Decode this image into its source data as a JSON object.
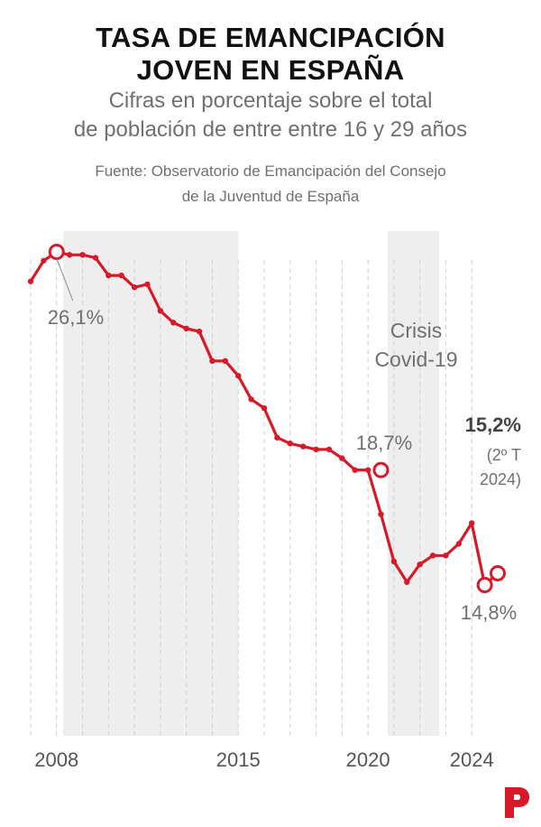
{
  "header": {
    "title_line1": "TASA DE EMANCIPACIÓN",
    "title_line2": "JOVEN EN ESPAÑA",
    "subtitle_line1": "Cifras en porcentaje sobre el total",
    "subtitle_line2": "de población de entre entre 16 y 29 años",
    "source_line1": "Fuente: Observatorio de Emancipación del Consejo",
    "source_line2": "de la Juventud de España"
  },
  "colors": {
    "line": "#d7192a",
    "shade": "#eeeeee",
    "text": "#707070",
    "title": "#111111"
  },
  "logo": {
    "icon": "publico-p-logo"
  },
  "chart_data": {
    "type": "line",
    "title": "TASA DE EMANCIPACIÓN JOVEN EN ESPAÑA",
    "xlabel": "",
    "ylabel": "",
    "xlim": [
      2007.0,
      2025.0
    ],
    "ylim": [
      8.0,
      27.0
    ],
    "grid": "vertical-dashed",
    "x_ticks": [
      {
        "value": 2008,
        "label": "2008"
      },
      {
        "value": 2015,
        "label": "2015"
      },
      {
        "value": 2020,
        "label": "2020"
      },
      {
        "value": 2024,
        "label": "2024"
      }
    ],
    "shaded_periods": [
      {
        "from": 2008.25,
        "to": 2015.0,
        "label_line1": "",
        "label_line2": ""
      },
      {
        "from": 2020.75,
        "to": 2022.75,
        "label_line1": "Crisis",
        "label_line2": "Covid-19"
      }
    ],
    "series": [
      {
        "x": [
          2007.0,
          2007.5,
          2008.0,
          2008.5,
          2009.0,
          2009.5,
          2010.0,
          2010.5,
          2011.0,
          2011.5,
          2012.0,
          2012.5,
          2013.0,
          2013.5,
          2014.0,
          2014.5,
          2015.0,
          2015.5,
          2016.0,
          2016.5,
          2017.0,
          2017.5,
          2018.0,
          2018.5,
          2019.0,
          2019.5,
          2020.0,
          2020.5,
          2021.0,
          2021.5,
          2022.0,
          2022.5,
          2023.0,
          2023.5,
          2024.0,
          2024.5
        ],
        "values": [
          25.1,
          25.8,
          26.1,
          26.0,
          26.0,
          25.9,
          25.3,
          25.3,
          24.9,
          25.0,
          24.1,
          23.7,
          23.5,
          23.4,
          22.4,
          22.4,
          21.9,
          21.1,
          20.8,
          19.8,
          19.6,
          19.5,
          19.4,
          19.4,
          19.1,
          18.7,
          18.7,
          17.2,
          15.6,
          14.9,
          15.5,
          15.8,
          15.8,
          16.2,
          16.9,
          14.8
        ]
      }
    ],
    "final_point": {
      "x": 2025.0,
      "value": 15.2
    },
    "annotations": [
      {
        "x": 2008.0,
        "value": 26.1,
        "text": "26,1%"
      },
      {
        "x": 2020.5,
        "value": 18.7,
        "text": "18,7%"
      },
      {
        "x": 2024.5,
        "value": 14.8,
        "text": "14,8%"
      },
      {
        "x": 2025.0,
        "value": 15.2,
        "text": "15,2%",
        "note_line1": "(2º T",
        "note_line2": "2024)"
      }
    ]
  }
}
